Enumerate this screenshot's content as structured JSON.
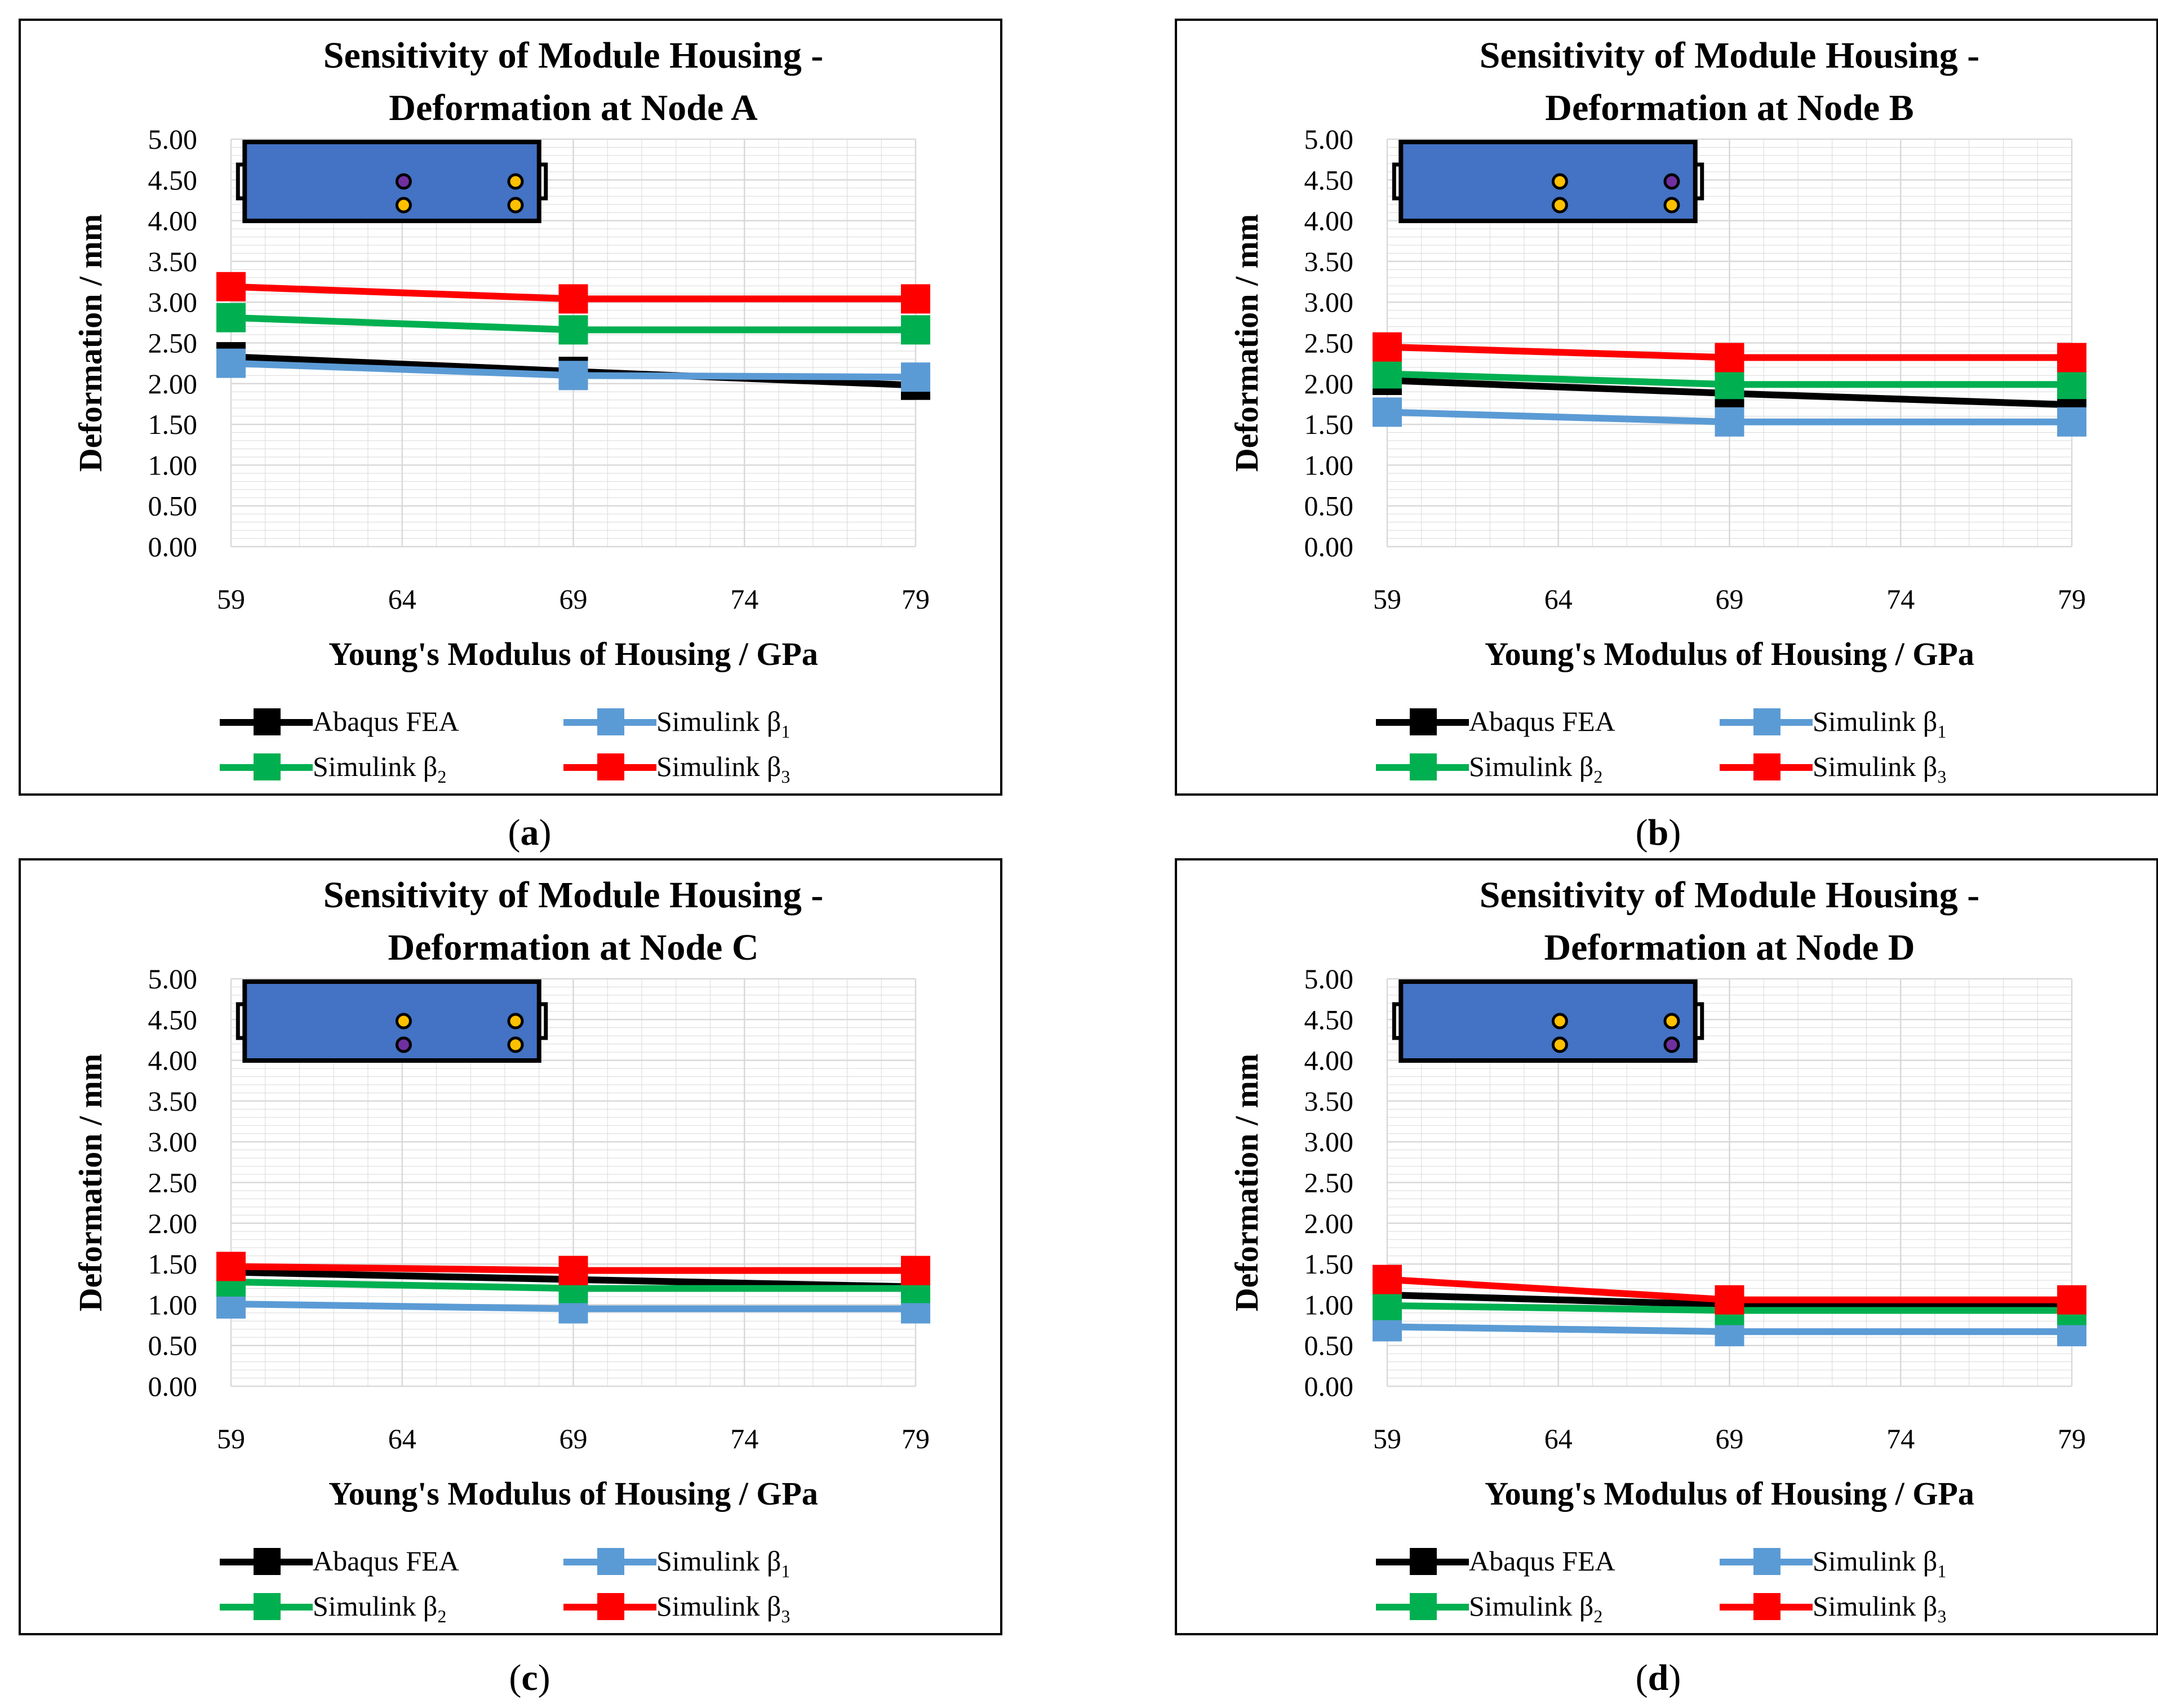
{
  "colors": {
    "abaqus": "#000000",
    "beta1": "#5B9BD5",
    "beta2": "#00B050",
    "beta3": "#FF0000",
    "grid": "#D9D9D9",
    "inset_fill": "#4472C4",
    "node_highlight": "#7030A0",
    "node_other": "#FFC000"
  },
  "chart_data": [
    {
      "type": "line",
      "panel_label": "a",
      "title_line1": "Sensitivity of Module Housing -",
      "title_line2": "Deformation at Node A",
      "xlabel": "Young's Modulus of Housing / GPa",
      "ylabel": "Deformation / mm",
      "xlim": [
        59,
        79
      ],
      "ylim": [
        0,
        5
      ],
      "x_ticks": [
        "59",
        "64",
        "69",
        "74",
        "79"
      ],
      "y_ticks": [
        "0.00",
        "0.50",
        "1.00",
        "1.50",
        "2.00",
        "2.50",
        "3.00",
        "3.50",
        "4.00",
        "4.50",
        "5.00"
      ],
      "x": [
        59,
        69,
        79
      ],
      "series": [
        {
          "name": "Abaqus FEA",
          "color_key": "abaqus",
          "values": [
            2.33,
            2.15,
            1.98
          ]
        },
        {
          "name": "Simulink β₁",
          "color_key": "beta1",
          "values": [
            2.25,
            2.1,
            2.08
          ]
        },
        {
          "name": "Simulink β₂",
          "color_key": "beta2",
          "values": [
            2.81,
            2.66,
            2.66
          ]
        },
        {
          "name": "Simulink β₃",
          "color_key": "beta3",
          "values": [
            3.19,
            3.04,
            3.04
          ]
        }
      ],
      "highlighted_node": "top-left"
    },
    {
      "type": "line",
      "panel_label": "b",
      "title_line1": "Sensitivity of Module Housing -",
      "title_line2": "Deformation at Node B",
      "xlabel": "Young's Modulus of Housing / GPa",
      "ylabel": "Deformation / mm",
      "xlim": [
        59,
        79
      ],
      "ylim": [
        0,
        5
      ],
      "x_ticks": [
        "59",
        "64",
        "69",
        "74",
        "79"
      ],
      "y_ticks": [
        "0.00",
        "0.50",
        "1.00",
        "1.50",
        "2.00",
        "2.50",
        "3.00",
        "3.50",
        "4.00",
        "4.50",
        "5.00"
      ],
      "x": [
        59,
        69,
        79
      ],
      "series": [
        {
          "name": "Abaqus FEA",
          "color_key": "abaqus",
          "values": [
            2.04,
            1.88,
            1.74
          ]
        },
        {
          "name": "Simulink β₁",
          "color_key": "beta1",
          "values": [
            1.65,
            1.53,
            1.53
          ]
        },
        {
          "name": "Simulink β₂",
          "color_key": "beta2",
          "values": [
            2.12,
            1.99,
            1.99
          ]
        },
        {
          "name": "Simulink β₃",
          "color_key": "beta3",
          "values": [
            2.45,
            2.32,
            2.32
          ]
        }
      ],
      "highlighted_node": "top-right"
    },
    {
      "type": "line",
      "panel_label": "c",
      "title_line1": "Sensitivity of Module Housing -",
      "title_line2": "Deformation at Node C",
      "xlabel": "Young's Modulus of Housing / GPa",
      "ylabel": "Deformation / mm",
      "xlim": [
        59,
        79
      ],
      "ylim": [
        0,
        5
      ],
      "x_ticks": [
        "59",
        "64",
        "69",
        "74",
        "79"
      ],
      "y_ticks": [
        "0.00",
        "0.50",
        "1.00",
        "1.50",
        "2.00",
        "2.50",
        "3.00",
        "3.50",
        "4.00",
        "4.50",
        "5.00"
      ],
      "x": [
        59,
        69,
        79
      ],
      "series": [
        {
          "name": "Abaqus FEA",
          "color_key": "abaqus",
          "values": [
            1.4,
            1.31,
            1.22
          ]
        },
        {
          "name": "Simulink β₁",
          "color_key": "beta1",
          "values": [
            1.01,
            0.95,
            0.95
          ]
        },
        {
          "name": "Simulink β₂",
          "color_key": "beta2",
          "values": [
            1.28,
            1.2,
            1.2
          ]
        },
        {
          "name": "Simulink β₃",
          "color_key": "beta3",
          "values": [
            1.47,
            1.42,
            1.42
          ]
        }
      ],
      "highlighted_node": "bottom-left"
    },
    {
      "type": "line",
      "panel_label": "d",
      "title_line1": "Sensitivity of Module Housing -",
      "title_line2": "Deformation at Node D",
      "xlabel": "Young's Modulus of Housing / GPa",
      "ylabel": "Deformation / mm",
      "xlim": [
        59,
        79
      ],
      "ylim": [
        0,
        5
      ],
      "x_ticks": [
        "59",
        "64",
        "69",
        "74",
        "79"
      ],
      "y_ticks": [
        "0.00",
        "0.50",
        "1.00",
        "1.50",
        "2.00",
        "2.50",
        "3.00",
        "3.50",
        "4.00",
        "4.50",
        "5.00"
      ],
      "x": [
        59,
        69,
        79
      ],
      "series": [
        {
          "name": "Abaqus FEA",
          "color_key": "abaqus",
          "values": [
            1.12,
            1.0,
            0.98
          ]
        },
        {
          "name": "Simulink β₁",
          "color_key": "beta1",
          "values": [
            0.73,
            0.67,
            0.67
          ]
        },
        {
          "name": "Simulink β₂",
          "color_key": "beta2",
          "values": [
            0.99,
            0.93,
            0.93
          ]
        },
        {
          "name": "Simulink β₃",
          "color_key": "beta3",
          "values": [
            1.31,
            1.06,
            1.06
          ]
        }
      ],
      "highlighted_node": "bottom-right"
    }
  ]
}
